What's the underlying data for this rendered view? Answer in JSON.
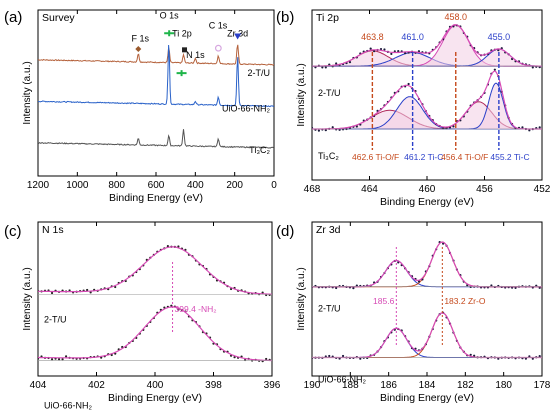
{
  "chart_data": [
    {
      "panel": "(a)",
      "type": "line",
      "title": "Survey",
      "xlabel": "Binding Energy (eV)",
      "ylabel": "Intensity (a.u.)",
      "xlim": [
        1200,
        0
      ],
      "xticks": [
        1200,
        1000,
        800,
        600,
        400,
        200,
        0
      ],
      "legend": "none",
      "grid": false,
      "series": [
        {
          "name": "2-T/U",
          "color": "#b5623c",
          "baseline": 0.7,
          "peaks": [
            [
              690,
              0.05
            ],
            [
              535,
              0.09
            ],
            [
              460,
              0.05
            ],
            [
              400,
              0.03
            ],
            [
              283,
              0.05
            ],
            [
              185,
              0.12
            ]
          ]
        },
        {
          "name": "UiO-66-NH₂",
          "color": "#2a62c9",
          "baseline": 0.45,
          "peaks": [
            [
              535,
              0.37
            ],
            [
              400,
              0.02
            ],
            [
              283,
              0.05
            ],
            [
              185,
              0.3
            ]
          ]
        },
        {
          "name": "Ti₃C₂",
          "color": "#555555",
          "baseline": 0.2,
          "peaks": [
            [
              690,
              0.04
            ],
            [
              535,
              0.06
            ],
            [
              460,
              0.1
            ],
            [
              283,
              0.05
            ]
          ]
        }
      ],
      "annotations": [
        {
          "text": "O 1s",
          "x": 533,
          "y": 0.95
        },
        {
          "text": "F 1s",
          "x": 680,
          "y": 0.81
        },
        {
          "text": "Ti 2p",
          "x": 468,
          "y": 0.84
        },
        {
          "text": "C 1s",
          "x": 285,
          "y": 0.89
        },
        {
          "text": "Zr 3d",
          "x": 185,
          "y": 0.84
        },
        {
          "text": "N 1s",
          "x": 400,
          "y": 0.71
        }
      ],
      "markers": [
        {
          "symbol": "arrow-up",
          "color": "#1fb54a",
          "x": 533,
          "y": 0.86
        },
        {
          "symbol": "diamond",
          "color": "#9b5a2c",
          "x": 690,
          "y": 0.765
        },
        {
          "symbol": "square",
          "color": "#222222",
          "x": 455,
          "y": 0.76
        },
        {
          "symbol": "circle",
          "color": "#d7a8e0",
          "x": 283,
          "y": 0.77
        },
        {
          "symbol": "triangle-down",
          "color": "#2a3fc9",
          "x": 185,
          "y": 0.84
        },
        {
          "symbol": "arrow-down",
          "color": "#1fb54a",
          "x": 470,
          "y": 0.62
        }
      ]
    },
    {
      "panel": "(b)",
      "type": "line",
      "title": "Ti 2p",
      "xlabel": "Binding Energy (eV)",
      "ylabel": "Intensity (a.u.)",
      "xlim": [
        468,
        452
      ],
      "xticks": [
        468,
        464,
        460,
        456,
        452
      ],
      "series": [
        {
          "name": "2-T/U",
          "baseline": 0.67,
          "points_color": "#2a3a8a",
          "envelope_color": "#d64ab5",
          "components": [
            {
              "center": 463.8,
              "height": 0.09,
              "width": 1.1,
              "color": "#b0285a"
            },
            {
              "center": 461.0,
              "height": 0.08,
              "width": 1.2,
              "color": "#2a3fc9"
            },
            {
              "center": 458.0,
              "height": 0.24,
              "width": 0.9,
              "color": "#d64ab5"
            },
            {
              "center": 455.0,
              "height": 0.1,
              "width": 0.8,
              "color": "#2a3fc9"
            }
          ]
        },
        {
          "name": "Ti₃C₂",
          "baseline": 0.3,
          "points_color": "#222222",
          "envelope_color": "#d64ab5",
          "components": [
            {
              "center": 462.6,
              "height": 0.11,
              "width": 1.3,
              "color": "#b0285a"
            },
            {
              "center": 461.2,
              "height": 0.19,
              "width": 0.9,
              "color": "#2a3fc9"
            },
            {
              "center": 456.4,
              "height": 0.16,
              "width": 0.9,
              "color": "#b0285a"
            },
            {
              "center": 455.2,
              "height": 0.27,
              "width": 0.5,
              "color": "#2a3fc9"
            }
          ]
        }
      ],
      "labels_top": [
        {
          "text": "463.8",
          "x": 463.8,
          "color": "#c5491c"
        },
        {
          "text": "461.0",
          "x": 461.0,
          "color": "#2a3fc9"
        },
        {
          "text": "458.0",
          "x": 458.0,
          "color": "#c5491c"
        },
        {
          "text": "455.0",
          "x": 455.0,
          "color": "#2a3fc9"
        }
      ],
      "dashed_lines": [
        {
          "x": 463.8,
          "color": "#c5491c"
        },
        {
          "x": 461.0,
          "color": "#2a3fc9"
        },
        {
          "x": 458.0,
          "color": "#c5491c"
        },
        {
          "x": 455.0,
          "color": "#2a3fc9"
        }
      ],
      "labels_bottom": [
        {
          "text": "462.6 Ti-O/F",
          "x": 462.6,
          "color": "#c5491c"
        },
        {
          "text": "461.2 Ti-C",
          "x": 461.2,
          "color": "#2a3fc9"
        },
        {
          "text": "456.4 Ti-O/F",
          "x": 456.4,
          "color": "#c5491c"
        },
        {
          "text": "455.2 Ti-C",
          "x": 455.2,
          "color": "#2a3fc9"
        }
      ]
    },
    {
      "panel": "(c)",
      "type": "line",
      "title": "N 1s",
      "xlabel": "Binding Energy (eV)",
      "ylabel": "Intensity (a.u.)",
      "xlim": [
        404,
        396
      ],
      "xticks": [
        404,
        402,
        400,
        398,
        396
      ],
      "series": [
        {
          "name": "2-T/U",
          "baseline": 0.53,
          "center": 399.4,
          "height": 0.3,
          "width": 1.0
        },
        {
          "name": "UiO-66-NH₂",
          "baseline": 0.1,
          "center": 399.4,
          "height": 0.34,
          "width": 0.95
        }
      ],
      "annotation": {
        "text": "399.4 -NH₂",
        "x": 399.4,
        "color": "#d64ab5"
      }
    },
    {
      "panel": "(d)",
      "type": "line",
      "title": "Zr 3d",
      "xlabel": "Binding Energy (eV)",
      "ylabel": "Intensity (a.u.)",
      "xlim": [
        190,
        178
      ],
      "xticks": [
        190,
        188,
        186,
        184,
        182,
        180,
        178
      ],
      "series": [
        {
          "name": "2-T/U",
          "baseline": 0.58,
          "components": [
            {
              "center": 185.6,
              "height": 0.17,
              "width": 0.55,
              "color": "#2a3fc9"
            },
            {
              "center": 183.2,
              "height": 0.29,
              "width": 0.55,
              "color": "#c5491c"
            }
          ]
        },
        {
          "name": "UiO-66-NH₂",
          "baseline": 0.12,
          "components": [
            {
              "center": 185.6,
              "height": 0.19,
              "width": 0.55,
              "color": "#2a3fc9"
            },
            {
              "center": 183.2,
              "height": 0.29,
              "width": 0.55,
              "color": "#c5491c"
            }
          ]
        }
      ],
      "labels": [
        {
          "text": "185.6",
          "x": 185.6,
          "color": "#d64ab5"
        },
        {
          "text": "183.2 Zr-O",
          "x": 183.2,
          "color": "#c5491c"
        }
      ]
    }
  ]
}
